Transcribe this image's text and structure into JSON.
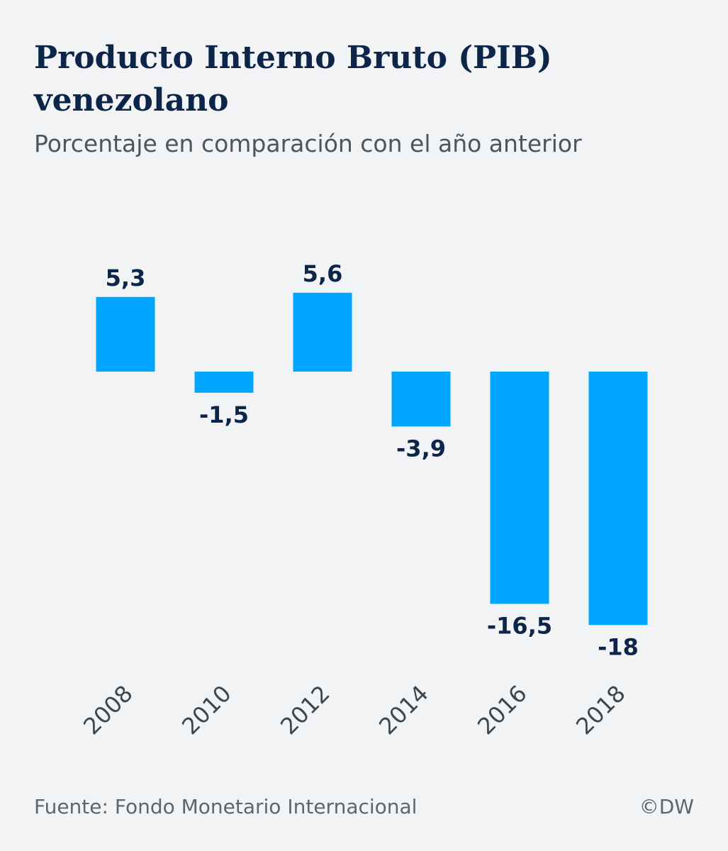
{
  "header": {
    "title": "Producto Interno Bruto (PIB) venezolano",
    "subtitle": "Porcentaje en comparación con el año anterior"
  },
  "footer": {
    "source": "Fuente: Fondo Monetario Internacional",
    "copyright": "©DW"
  },
  "colors": {
    "bar": "#00a5ff",
    "label": "#0c2549",
    "background": "#f1f3f5"
  },
  "chart_data": {
    "type": "bar",
    "categories": [
      "2008",
      "2010",
      "2012",
      "2014",
      "2016",
      "2018"
    ],
    "values": [
      5.3,
      -1.5,
      5.6,
      -3.9,
      -16.5,
      -18
    ],
    "data_labels": [
      "5,3",
      "-1,5",
      "5,6",
      "-3,9",
      "-16,5",
      "-18"
    ],
    "title": "Producto Interno Bruto (PIB) venezolano",
    "subtitle": "Porcentaje en comparación con el año anterior",
    "xlabel": "",
    "ylabel": "",
    "ylim": [
      -18,
      5.6
    ],
    "grid": false,
    "legend": "none",
    "tick_rotation": "diagonal"
  }
}
